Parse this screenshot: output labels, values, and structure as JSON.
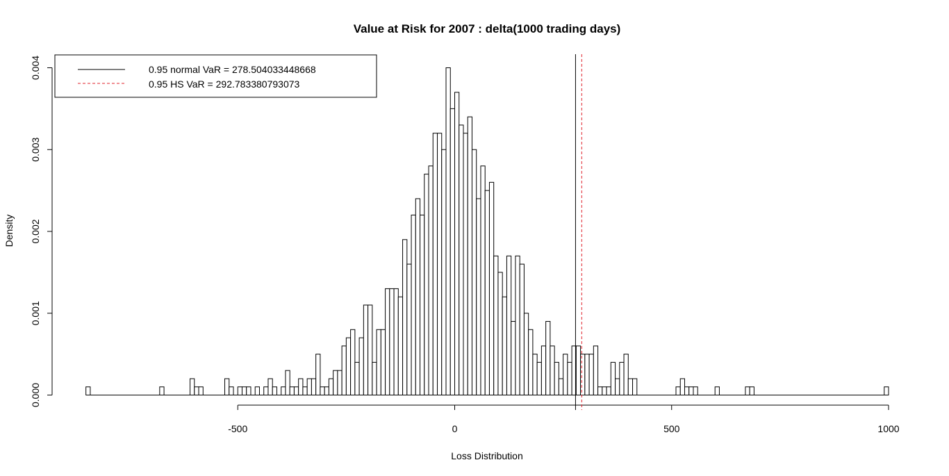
{
  "chart_data": {
    "type": "histogram",
    "title": "Value at Risk for 2007 : delta(1000 trading days)",
    "xlabel": "Loss Distribution",
    "ylabel": "Density",
    "xlim": [
      -850,
      1000
    ],
    "ylim": [
      0,
      0.004
    ],
    "xticks": [
      -500,
      0,
      500,
      1000
    ],
    "xtick_labels": [
      "-500",
      "0",
      "500",
      "1000"
    ],
    "yticks": [
      0,
      0.001,
      0.002,
      0.003,
      0.004
    ],
    "ytick_labels": [
      "0.000",
      "0.001",
      "0.002",
      "0.003",
      "0.004"
    ],
    "bin_width": 10,
    "bin_start": -850,
    "bins": [
      [
        -850,
        0.0001
      ],
      [
        -680,
        0.0001
      ],
      [
        -610,
        0.0002
      ],
      [
        -600,
        0.0001
      ],
      [
        -590,
        0.0001
      ],
      [
        -530,
        0.0002
      ],
      [
        -520,
        0.0001
      ],
      [
        -500,
        0.0001
      ],
      [
        -490,
        0.0001
      ],
      [
        -480,
        0.0001
      ],
      [
        -460,
        0.0001
      ],
      [
        -440,
        0.0001
      ],
      [
        -430,
        0.0002
      ],
      [
        -420,
        0.0001
      ],
      [
        -400,
        0.0001
      ],
      [
        -390,
        0.0003
      ],
      [
        -380,
        0.0001
      ],
      [
        -370,
        0.0001
      ],
      [
        -360,
        0.0002
      ],
      [
        -350,
        0.0001
      ],
      [
        -340,
        0.0002
      ],
      [
        -330,
        0.0002
      ],
      [
        -320,
        0.0005
      ],
      [
        -310,
        0.0001
      ],
      [
        -300,
        0.0001
      ],
      [
        -290,
        0.0002
      ],
      [
        -280,
        0.0003
      ],
      [
        -270,
        0.0003
      ],
      [
        -260,
        0.0006
      ],
      [
        -250,
        0.0007
      ],
      [
        -240,
        0.0008
      ],
      [
        -230,
        0.0004
      ],
      [
        -220,
        0.0007
      ],
      [
        -210,
        0.0011
      ],
      [
        -200,
        0.0011
      ],
      [
        -190,
        0.0004
      ],
      [
        -180,
        0.0008
      ],
      [
        -170,
        0.0008
      ],
      [
        -160,
        0.0013
      ],
      [
        -150,
        0.0013
      ],
      [
        -140,
        0.0013
      ],
      [
        -130,
        0.0012
      ],
      [
        -120,
        0.0019
      ],
      [
        -110,
        0.0016
      ],
      [
        -100,
        0.0022
      ],
      [
        -90,
        0.0024
      ],
      [
        -80,
        0.0022
      ],
      [
        -70,
        0.0027
      ],
      [
        -60,
        0.0028
      ],
      [
        -50,
        0.0032
      ],
      [
        -40,
        0.0032
      ],
      [
        -30,
        0.003
      ],
      [
        -20,
        0.004
      ],
      [
        -10,
        0.0035
      ],
      [
        0,
        0.0037
      ],
      [
        10,
        0.0033
      ],
      [
        20,
        0.0032
      ],
      [
        30,
        0.0034
      ],
      [
        40,
        0.003
      ],
      [
        50,
        0.0024
      ],
      [
        60,
        0.0028
      ],
      [
        70,
        0.0025
      ],
      [
        80,
        0.0026
      ],
      [
        90,
        0.0017
      ],
      [
        100,
        0.0015
      ],
      [
        110,
        0.0012
      ],
      [
        120,
        0.0017
      ],
      [
        130,
        0.0009
      ],
      [
        140,
        0.0017
      ],
      [
        150,
        0.0016
      ],
      [
        160,
        0.001
      ],
      [
        170,
        0.0008
      ],
      [
        180,
        0.0005
      ],
      [
        190,
        0.0004
      ],
      [
        200,
        0.0006
      ],
      [
        210,
        0.0009
      ],
      [
        220,
        0.0006
      ],
      [
        230,
        0.0004
      ],
      [
        240,
        0.0002
      ],
      [
        250,
        0.0005
      ],
      [
        260,
        0.0004
      ],
      [
        270,
        0.0006
      ],
      [
        280,
        0.0006
      ],
      [
        290,
        0.0005
      ],
      [
        300,
        0.0005
      ],
      [
        310,
        0.0005
      ],
      [
        320,
        0.0006
      ],
      [
        330,
        0.0001
      ],
      [
        340,
        0.0001
      ],
      [
        350,
        0.0001
      ],
      [
        360,
        0.0004
      ],
      [
        370,
        0.0002
      ],
      [
        380,
        0.0004
      ],
      [
        390,
        0.0005
      ],
      [
        400,
        0.0002
      ],
      [
        410,
        0.0002
      ],
      [
        510,
        0.0001
      ],
      [
        520,
        0.0002
      ],
      [
        530,
        0.0001
      ],
      [
        540,
        0.0001
      ],
      [
        550,
        0.0001
      ],
      [
        600,
        0.0001
      ],
      [
        670,
        0.0001
      ],
      [
        680,
        0.0001
      ],
      [
        990,
        0.0001
      ]
    ],
    "vlines": [
      {
        "value": 278.504033448668,
        "color": "#000000",
        "style": "solid"
      },
      {
        "value": 292.783380793073,
        "color": "#e0202a",
        "style": "dashed"
      }
    ],
    "legend": {
      "position": "top-left",
      "items": [
        {
          "label": "0.95 normal VaR =  278.504033448668",
          "color": "#000000",
          "style": "solid"
        },
        {
          "label": "0.95 HS VaR =  292.783380793073",
          "color": "#e0202a",
          "style": "dashed"
        }
      ]
    },
    "grid": false
  }
}
